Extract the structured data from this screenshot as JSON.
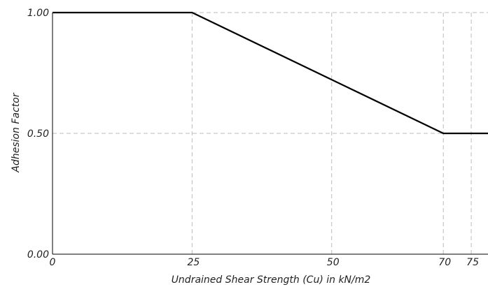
{
  "chart_data": {
    "type": "line",
    "xlabel": "Undrained Shear Strength (Cu) in kN/m2",
    "ylabel": "Adhesion Factor",
    "xlim": [
      0,
      78
    ],
    "ylim": [
      0,
      1.0
    ],
    "x_ticks": [
      0,
      25,
      50,
      70,
      75
    ],
    "x_tick_labels": [
      "0",
      "25",
      "50",
      "70",
      "75"
    ],
    "y_ticks": [
      0.0,
      0.5,
      1.0
    ],
    "y_tick_labels": [
      "0.00",
      "0.50",
      "1.00"
    ],
    "grid": "dashed",
    "series": [
      {
        "x": [
          0,
          25,
          70,
          78
        ],
        "y": [
          1.0,
          1.0,
          0.5,
          0.5
        ]
      }
    ],
    "colors": {
      "line": "#000000",
      "grid": "#bbbbbb",
      "axis": "#000000"
    }
  }
}
